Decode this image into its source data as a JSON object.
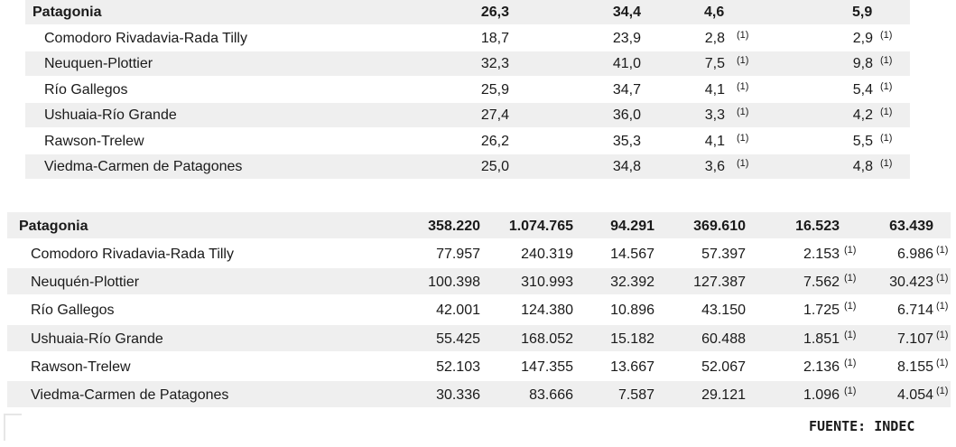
{
  "table1": {
    "header": {
      "name": "Patagonia",
      "values": [
        "26,3",
        "34,4",
        "4,6",
        "5,9"
      ]
    },
    "rows": [
      {
        "name": "Comodoro Rivadavia-Rada Tilly",
        "values": [
          "18,7",
          "23,9",
          "2,8",
          "2,9"
        ]
      },
      {
        "name": "Neuquen-Plottier",
        "values": [
          "32,3",
          "41,0",
          "7,5",
          "9,8"
        ]
      },
      {
        "name": "Río Gallegos",
        "values": [
          "25,9",
          "34,7",
          "4,1",
          "5,4"
        ]
      },
      {
        "name": "Ushuaia-Río Grande",
        "values": [
          "27,4",
          "36,0",
          "3,3",
          "4,2"
        ]
      },
      {
        "name": "Rawson-Trelew",
        "values": [
          "26,2",
          "35,3",
          "4,1",
          "5,5"
        ]
      },
      {
        "name": "Viedma-Carmen de Patagones",
        "values": [
          "25,0",
          "34,8",
          "3,6",
          "4,8"
        ]
      }
    ],
    "note": "(1)"
  },
  "table2": {
    "header": {
      "name": "Patagonia",
      "values": [
        "358.220",
        "1.074.765",
        "94.291",
        "369.610",
        "16.523",
        "63.439"
      ]
    },
    "rows": [
      {
        "name": "Comodoro Rivadavia-Rada Tilly",
        "values": [
          "77.957",
          "240.319",
          "14.567",
          "57.397",
          "2.153",
          "6.986"
        ]
      },
      {
        "name": "Neuquén-Plottier",
        "values": [
          "100.398",
          "310.993",
          "32.392",
          "127.387",
          "7.562",
          "30.423"
        ]
      },
      {
        "name": "Río Gallegos",
        "values": [
          "42.001",
          "124.380",
          "10.896",
          "43.150",
          "1.725",
          "6.714"
        ]
      },
      {
        "name": "Ushuaia-Río Grande",
        "values": [
          "55.425",
          "168.052",
          "15.182",
          "60.488",
          "1.851",
          "7.107"
        ]
      },
      {
        "name": "Rawson-Trelew",
        "values": [
          "52.103",
          "147.355",
          "13.667",
          "52.067",
          "2.136",
          "8.155"
        ]
      },
      {
        "name": "Viedma-Carmen de Patagones",
        "values": [
          "30.336",
          "83.666",
          "7.587",
          "29.121",
          "1.096",
          "4.054"
        ]
      }
    ],
    "note": "(1)"
  },
  "footer": {
    "source": "FUENTE: INDEC"
  },
  "colors": {
    "stripe": "#efefef",
    "text": "#1a1a1a"
  }
}
